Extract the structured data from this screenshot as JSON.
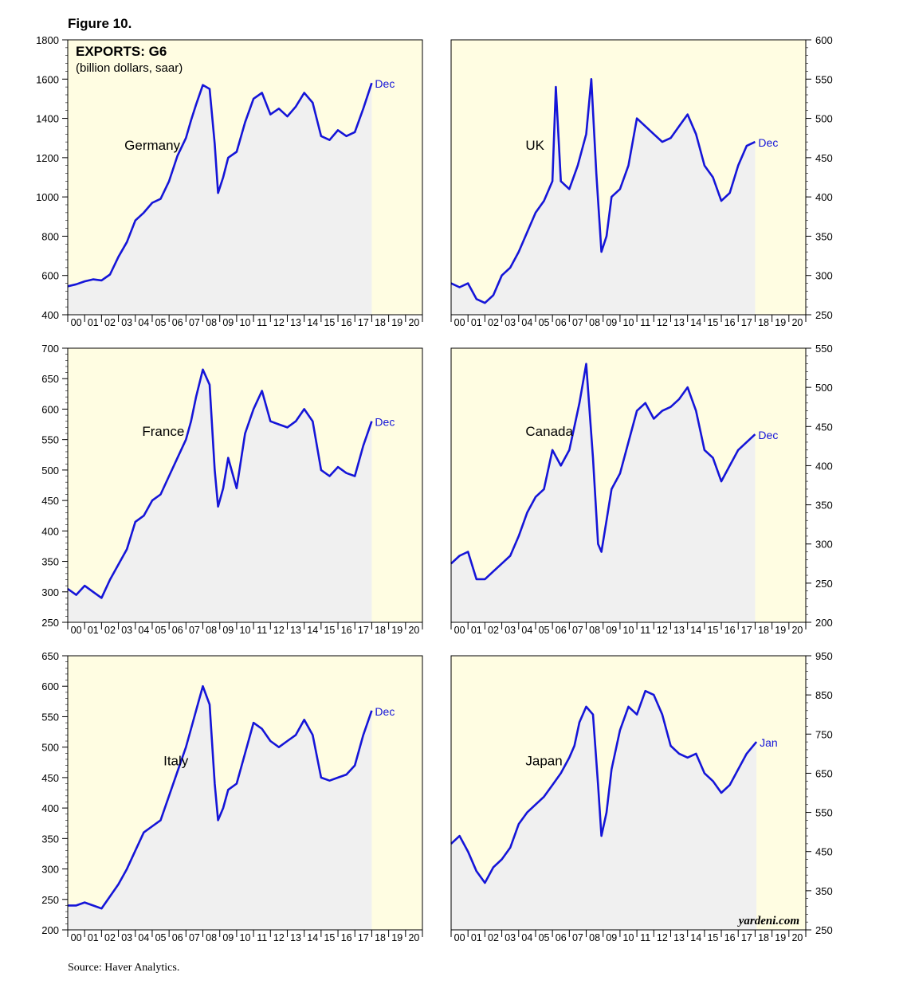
{
  "figure_title": "Figure 10.",
  "source": "Source: Haver Analytics.",
  "watermark": "yardeni.com",
  "colors": {
    "line": "#1515d8",
    "panel_bg": "#fffde2",
    "area_fill": "#f0f0f0",
    "frame": "#000000",
    "end_label": "#1515d8"
  },
  "x_tick_labels": [
    "00",
    "01",
    "02",
    "03",
    "04",
    "05",
    "06",
    "07",
    "08",
    "09",
    "10",
    "11",
    "12",
    "13",
    "14",
    "15",
    "16",
    "17",
    "18",
    "19",
    "20"
  ],
  "chart_data": [
    {
      "type": "area",
      "title": "EXPORTS: G6",
      "subtitle": "(billion dollars, saar)",
      "name": "Germany",
      "axis_side": "left",
      "end_label": "Dec",
      "ylim": [
        400,
        1800
      ],
      "yticks": [
        400,
        600,
        800,
        1000,
        1200,
        1400,
        1600,
        1800
      ],
      "xlim": [
        2000,
        2021
      ],
      "data_end": 2018.0,
      "x": [
        2000,
        2000.5,
        2001,
        2001.5,
        2002,
        2002.5,
        2003,
        2003.5,
        2004,
        2004.5,
        2005,
        2005.5,
        2006,
        2006.5,
        2007,
        2007.3,
        2007.6,
        2008,
        2008.4,
        2008.7,
        2008.9,
        2009.2,
        2009.5,
        2010,
        2010.5,
        2011,
        2011.5,
        2012,
        2012.5,
        2013,
        2013.5,
        2014,
        2014.5,
        2015,
        2015.5,
        2016,
        2016.5,
        2017,
        2017.5,
        2018
      ],
      "y": [
        545,
        555,
        570,
        580,
        575,
        605,
        695,
        770,
        880,
        920,
        970,
        990,
        1080,
        1210,
        1300,
        1390,
        1470,
        1570,
        1550,
        1270,
        1020,
        1100,
        1200,
        1230,
        1380,
        1500,
        1530,
        1420,
        1450,
        1410,
        1460,
        1530,
        1480,
        1310,
        1290,
        1340,
        1310,
        1330,
        1450,
        1580
      ]
    },
    {
      "type": "area",
      "name": "UK",
      "axis_side": "right",
      "end_label": "Dec",
      "ylim": [
        250,
        600
      ],
      "yticks": [
        250,
        300,
        350,
        400,
        450,
        500,
        550,
        600
      ],
      "xlim": [
        2000,
        2021
      ],
      "data_end": 2018.0,
      "x": [
        2000,
        2000.5,
        2001,
        2001.5,
        2002,
        2002.5,
        2003,
        2003.5,
        2004,
        2004.5,
        2005,
        2005.5,
        2006,
        2006.2,
        2006.5,
        2007,
        2007.5,
        2008,
        2008.3,
        2008.6,
        2008.9,
        2009.2,
        2009.5,
        2010,
        2010.5,
        2011,
        2011.5,
        2012,
        2012.5,
        2013,
        2013.5,
        2014,
        2014.5,
        2015,
        2015.5,
        2016,
        2016.5,
        2017,
        2017.5,
        2018
      ],
      "y": [
        290,
        285,
        290,
        270,
        265,
        275,
        300,
        310,
        330,
        355,
        380,
        395,
        420,
        540,
        420,
        410,
        440,
        480,
        550,
        430,
        330,
        350,
        400,
        410,
        440,
        500,
        490,
        480,
        470,
        475,
        490,
        505,
        480,
        440,
        425,
        395,
        405,
        440,
        465,
        470
      ]
    },
    {
      "type": "area",
      "name": "France",
      "axis_side": "left",
      "end_label": "Dec",
      "ylim": [
        250,
        700
      ],
      "yticks": [
        250,
        300,
        350,
        400,
        450,
        500,
        550,
        600,
        650,
        700
      ],
      "xlim": [
        2000,
        2021
      ],
      "data_end": 2018.0,
      "x": [
        2000,
        2000.5,
        2001,
        2001.5,
        2002,
        2002.5,
        2003,
        2003.5,
        2004,
        2004.5,
        2005,
        2005.5,
        2006,
        2006.5,
        2007,
        2007.3,
        2007.6,
        2008,
        2008.4,
        2008.7,
        2008.9,
        2009.2,
        2009.5,
        2010,
        2010.5,
        2011,
        2011.5,
        2012,
        2012.5,
        2013,
        2013.5,
        2014,
        2014.5,
        2015,
        2015.5,
        2016,
        2016.5,
        2017,
        2017.5,
        2018
      ],
      "y": [
        305,
        295,
        310,
        300,
        290,
        320,
        345,
        370,
        415,
        425,
        450,
        460,
        490,
        520,
        550,
        580,
        620,
        665,
        640,
        500,
        440,
        470,
        520,
        470,
        560,
        600,
        630,
        580,
        575,
        570,
        580,
        600,
        580,
        500,
        490,
        505,
        495,
        490,
        540,
        580
      ]
    },
    {
      "type": "area",
      "name": "Canada",
      "axis_side": "right",
      "end_label": "Dec",
      "ylim": [
        200,
        550
      ],
      "yticks": [
        200,
        250,
        300,
        350,
        400,
        450,
        500,
        550
      ],
      "xlim": [
        2000,
        2021
      ],
      "data_end": 2018.0,
      "x": [
        2000,
        2000.5,
        2001,
        2001.5,
        2002,
        2002.5,
        2003,
        2003.5,
        2004,
        2004.5,
        2005,
        2005.5,
        2006,
        2006.5,
        2007,
        2007.3,
        2007.6,
        2008,
        2008.4,
        2008.7,
        2008.9,
        2009.2,
        2009.5,
        2010,
        2010.5,
        2011,
        2011.5,
        2012,
        2012.5,
        2013,
        2013.5,
        2014,
        2014.5,
        2015,
        2015.5,
        2016,
        2016.5,
        2017,
        2017.5,
        2018
      ],
      "y": [
        275,
        285,
        290,
        255,
        255,
        265,
        275,
        285,
        310,
        340,
        360,
        370,
        420,
        400,
        420,
        450,
        480,
        530,
        410,
        300,
        290,
        330,
        370,
        390,
        430,
        470,
        480,
        460,
        470,
        475,
        485,
        500,
        470,
        420,
        410,
        380,
        400,
        420,
        430,
        440
      ]
    },
    {
      "type": "area",
      "name": "Italy",
      "axis_side": "left",
      "end_label": "Dec",
      "ylim": [
        200,
        650
      ],
      "yticks": [
        200,
        250,
        300,
        350,
        400,
        450,
        500,
        550,
        600,
        650
      ],
      "xlim": [
        2000,
        2021
      ],
      "data_end": 2018.0,
      "x": [
        2000,
        2000.5,
        2001,
        2001.5,
        2002,
        2002.5,
        2003,
        2003.5,
        2004,
        2004.5,
        2005,
        2005.5,
        2006,
        2006.5,
        2007,
        2007.3,
        2007.6,
        2008,
        2008.4,
        2008.7,
        2008.9,
        2009.2,
        2009.5,
        2010,
        2010.5,
        2011,
        2011.5,
        2012,
        2012.5,
        2013,
        2013.5,
        2014,
        2014.5,
        2015,
        2015.5,
        2016,
        2016.5,
        2017,
        2017.5,
        2018
      ],
      "y": [
        240,
        240,
        245,
        240,
        235,
        255,
        275,
        300,
        330,
        360,
        370,
        380,
        420,
        460,
        500,
        530,
        560,
        600,
        570,
        440,
        380,
        400,
        430,
        440,
        490,
        540,
        530,
        510,
        500,
        510,
        520,
        545,
        520,
        450,
        445,
        450,
        455,
        470,
        520,
        560
      ]
    },
    {
      "type": "area",
      "name": "Japan",
      "axis_side": "right",
      "end_label": "Jan",
      "ylim": [
        250,
        950
      ],
      "yticks": [
        250,
        350,
        450,
        550,
        650,
        750,
        850,
        950
      ],
      "xlim": [
        2000,
        2021
      ],
      "data_end": 2018.08,
      "x": [
        2000,
        2000.5,
        2001,
        2001.5,
        2002,
        2002.5,
        2003,
        2003.5,
        2004,
        2004.5,
        2005,
        2005.5,
        2006,
        2006.5,
        2007,
        2007.3,
        2007.6,
        2008,
        2008.4,
        2008.7,
        2008.9,
        2009.2,
        2009.5,
        2010,
        2010.5,
        2011,
        2011.5,
        2012,
        2012.5,
        2013,
        2013.5,
        2014,
        2014.5,
        2015,
        2015.5,
        2016,
        2016.5,
        2017,
        2017.5,
        2018.08
      ],
      "y": [
        470,
        490,
        450,
        400,
        370,
        410,
        430,
        460,
        520,
        550,
        570,
        590,
        620,
        650,
        690,
        720,
        780,
        820,
        800,
        620,
        490,
        550,
        660,
        760,
        820,
        800,
        860,
        850,
        800,
        720,
        700,
        690,
        700,
        650,
        630,
        600,
        620,
        660,
        700,
        730
      ]
    }
  ]
}
